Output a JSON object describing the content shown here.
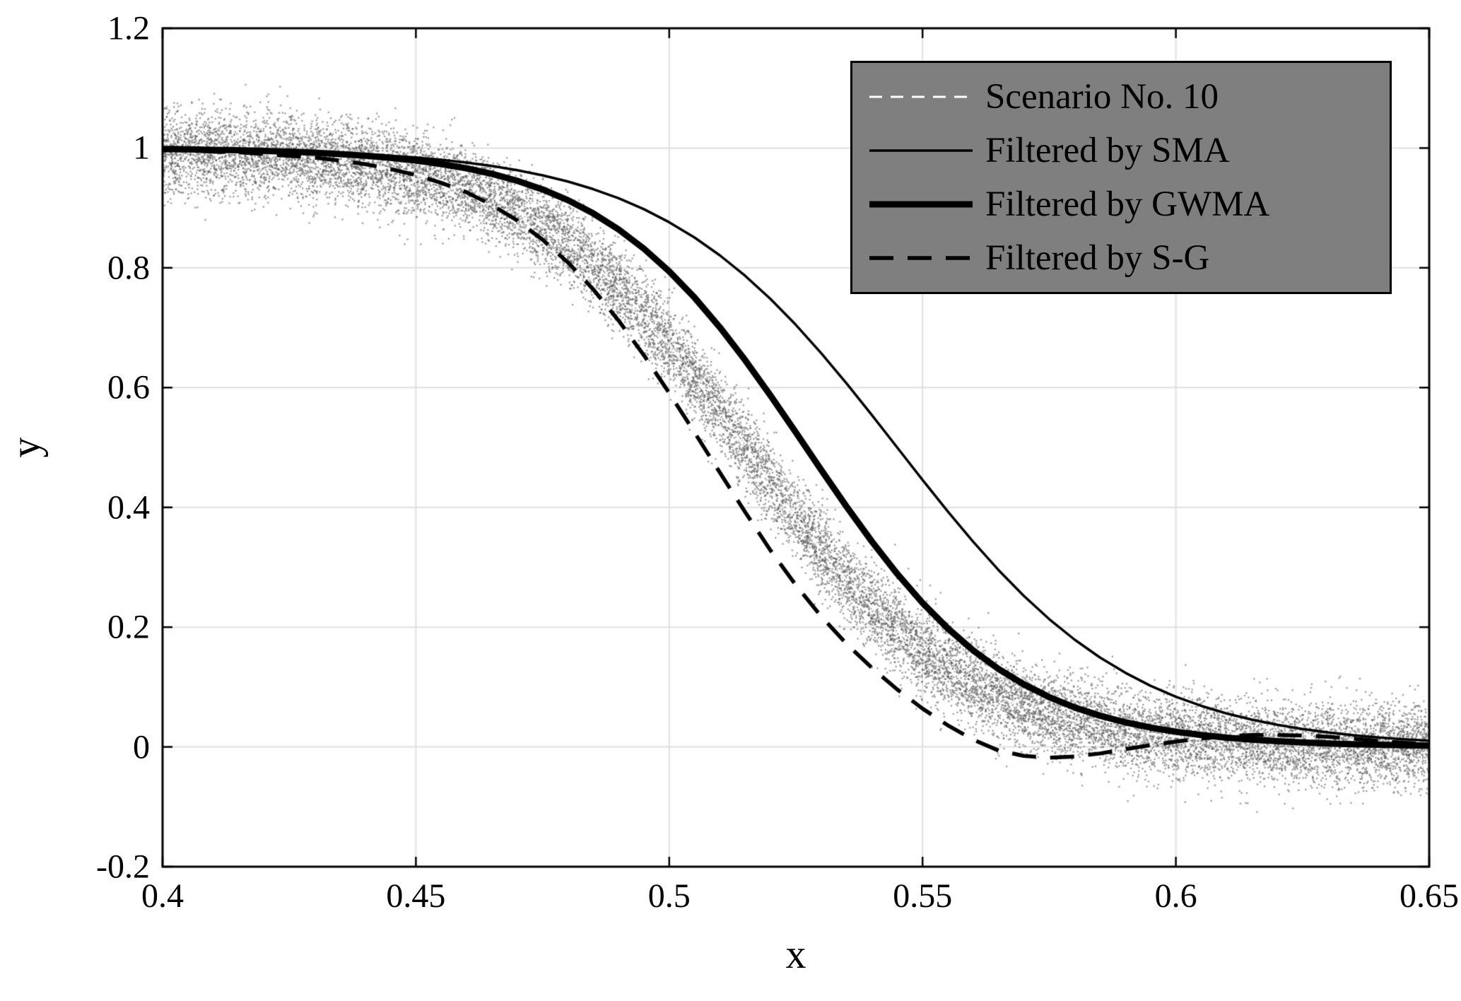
{
  "chart_data": {
    "type": "line",
    "title": "",
    "xlabel": "x",
    "ylabel": "y",
    "xlim": [
      0.4,
      0.65
    ],
    "ylim": [
      -0.2,
      1.2
    ],
    "xticks": [
      0.4,
      0.45,
      0.5,
      0.55,
      0.6,
      0.65
    ],
    "xtick_labels": [
      "0.4",
      "0.45",
      "0.5",
      "0.55",
      "0.6",
      "0.65"
    ],
    "yticks": [
      -0.2,
      0,
      0.2,
      0.4,
      0.6,
      0.8,
      1,
      1.2
    ],
    "ytick_labels": [
      "-0.2",
      "0",
      "0.2",
      "0.4",
      "0.6",
      "0.8",
      "1",
      "1.2"
    ],
    "grid": true,
    "grid_color": "#e0e0e0",
    "axis_color": "#000000",
    "background": "#ffffff",
    "x": [
      0.4,
      0.405,
      0.41,
      0.415,
      0.42,
      0.425,
      0.43,
      0.435,
      0.44,
      0.445,
      0.45,
      0.455,
      0.46,
      0.465,
      0.47,
      0.475,
      0.48,
      0.485,
      0.49,
      0.495,
      0.5,
      0.505,
      0.51,
      0.515,
      0.52,
      0.525,
      0.53,
      0.535,
      0.54,
      0.545,
      0.55,
      0.555,
      0.56,
      0.565,
      0.57,
      0.575,
      0.58,
      0.585,
      0.59,
      0.595,
      0.6,
      0.605,
      0.61,
      0.615,
      0.62,
      0.625,
      0.63,
      0.635,
      0.64,
      0.645,
      0.65
    ],
    "series": [
      {
        "name": "Scenario No. 10",
        "color": "#ffffff",
        "width": 3,
        "dash": [
          18,
          12
        ],
        "values": [
          0.9958,
          0.9947,
          0.9933,
          0.9915,
          0.9893,
          0.9864,
          0.9828,
          0.9783,
          0.9727,
          0.9656,
          0.9567,
          0.9457,
          0.9321,
          0.9154,
          0.895,
          0.8705,
          0.8411,
          0.8066,
          0.7668,
          0.7215,
          0.6713,
          0.6168,
          0.5592,
          0.5,
          0.4408,
          0.3832,
          0.3287,
          0.2785,
          0.2332,
          0.1934,
          0.1589,
          0.1296,
          0.105,
          0.0846,
          0.0679,
          0.0543,
          0.0433,
          0.0345,
          0.0273,
          0.0217,
          0.0172,
          0.0136,
          0.0107,
          0.0085,
          0.0067,
          0.0053,
          0.0042,
          0.0033,
          0.0026,
          0.002,
          0.0016
        ]
      },
      {
        "name": "Filtered by SMA",
        "color": "#000000",
        "width": 3.5,
        "dash": [],
        "values": [
          0.9982,
          0.9977,
          0.9972,
          0.9965,
          0.9956,
          0.9946,
          0.9933,
          0.9917,
          0.9897,
          0.9872,
          0.9842,
          0.9804,
          0.9758,
          0.97,
          0.9631,
          0.9545,
          0.9441,
          0.9314,
          0.9162,
          0.8979,
          0.8761,
          0.8506,
          0.8208,
          0.7866,
          0.7479,
          0.7047,
          0.6575,
          0.607,
          0.5541,
          0.5,
          0.4459,
          0.393,
          0.3425,
          0.2953,
          0.2521,
          0.2134,
          0.1792,
          0.1494,
          0.1239,
          0.1021,
          0.0838,
          0.0686,
          0.0559,
          0.0455,
          0.0369,
          0.03,
          0.0242,
          0.0196,
          0.0158,
          0.0128,
          0.0103
        ]
      },
      {
        "name": "Filtered by GWMA",
        "color": "#000000",
        "width": 9,
        "dash": [],
        "values": [
          0.9983,
          0.9978,
          0.9971,
          0.9963,
          0.9953,
          0.9939,
          0.9922,
          0.99,
          0.9873,
          0.9837,
          0.9791,
          0.9734,
          0.9661,
          0.9569,
          0.9453,
          0.9309,
          0.913,
          0.8909,
          0.8642,
          0.832,
          0.7941,
          0.7503,
          0.7006,
          0.6457,
          0.5866,
          0.525,
          0.4626,
          0.4013,
          0.343,
          0.2891,
          0.2405,
          0.1978,
          0.1611,
          0.1301,
          0.1044,
          0.0832,
          0.066,
          0.0522,
          0.0411,
          0.0323,
          0.0253,
          0.0198,
          0.0155,
          0.0121,
          0.0095,
          0.0074,
          0.0058,
          0.0045,
          0.0035,
          0.0027,
          0.0021
        ]
      },
      {
        "name": "Filtered by S-G",
        "color": "#000000",
        "width": 5.5,
        "dash": [
          34,
          20
        ],
        "values": [
          0.997,
          0.996,
          0.994,
          0.993,
          0.99,
          0.987,
          0.984,
          0.979,
          0.973,
          0.965,
          0.955,
          0.942,
          0.926,
          0.905,
          0.879,
          0.847,
          0.809,
          0.764,
          0.712,
          0.654,
          0.591,
          0.525,
          0.458,
          0.392,
          0.328,
          0.27,
          0.218,
          0.172,
          0.132,
          0.096,
          0.064,
          0.036,
          0.012,
          -0.006,
          -0.015,
          -0.018,
          -0.016,
          -0.011,
          -0.004,
          0.003,
          0.009,
          0.014,
          0.018,
          0.02,
          0.02,
          0.019,
          0.017,
          0.014,
          0.01,
          0.007,
          0.004
        ]
      }
    ],
    "scatter": {
      "name": "noisy-samples",
      "follows": "Scenario No. 10",
      "n_points": 17000,
      "noise_std": 0.034,
      "marker_color": "#595959",
      "marker_alpha": 0.55,
      "marker_size": 2.4,
      "seed": 7
    },
    "legend": {
      "position": "top-right",
      "background": "#7f7f7f",
      "border_color": "#000000",
      "entries": [
        "Scenario No. 10",
        "Filtered by SMA",
        "Filtered by GWMA",
        "Filtered by S-G"
      ]
    }
  }
}
